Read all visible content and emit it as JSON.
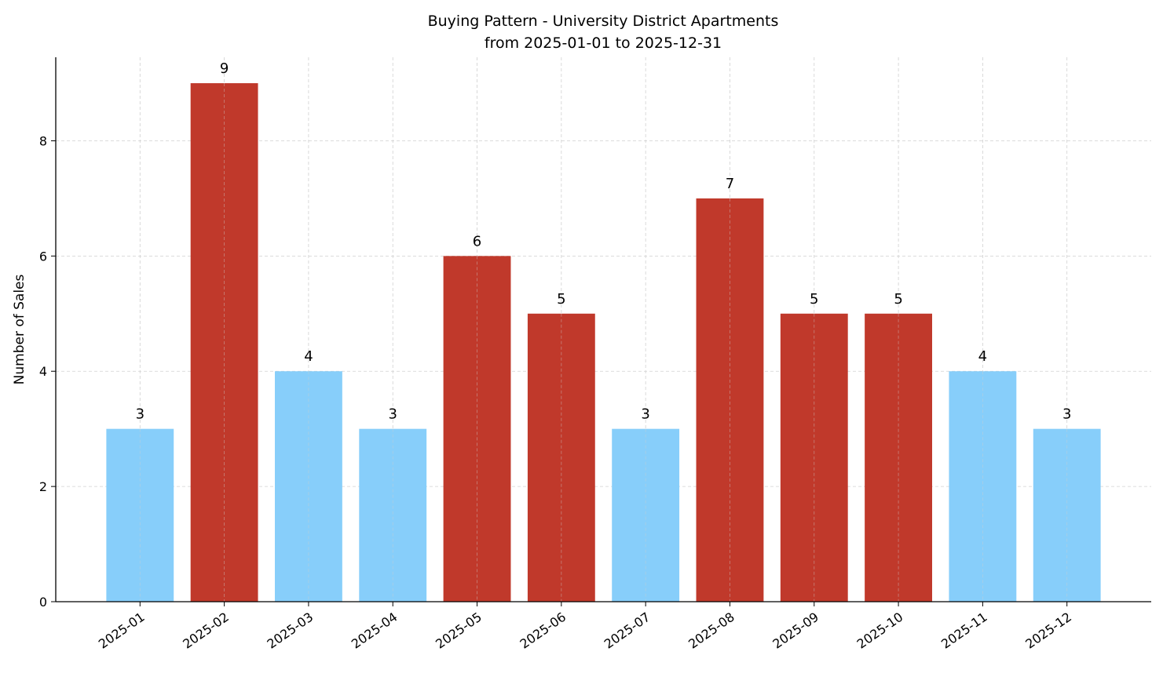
{
  "chart_data": {
    "type": "bar",
    "title": "Buying Pattern - University District Apartments",
    "subtitle": "from 2025-01-01 to 2025-12-31",
    "xlabel": "",
    "ylabel": "Number of Sales",
    "categories": [
      "2025-01",
      "2025-02",
      "2025-03",
      "2025-04",
      "2025-05",
      "2025-06",
      "2025-07",
      "2025-08",
      "2025-09",
      "2025-10",
      "2025-11",
      "2025-12"
    ],
    "values": [
      3,
      9,
      4,
      3,
      6,
      5,
      3,
      7,
      5,
      5,
      4,
      3
    ],
    "bar_colors": [
      "#87cefa",
      "#c0392b",
      "#87cefa",
      "#87cefa",
      "#c0392b",
      "#c0392b",
      "#87cefa",
      "#c0392b",
      "#c0392b",
      "#c0392b",
      "#87cefa",
      "#87cefa"
    ],
    "colors": {
      "high": "#c0392b",
      "low": "#87cefa"
    },
    "ylim": [
      0,
      9.45
    ],
    "yticks": [
      0,
      2,
      4,
      6,
      8
    ],
    "grid": true,
    "data_labels": true
  }
}
